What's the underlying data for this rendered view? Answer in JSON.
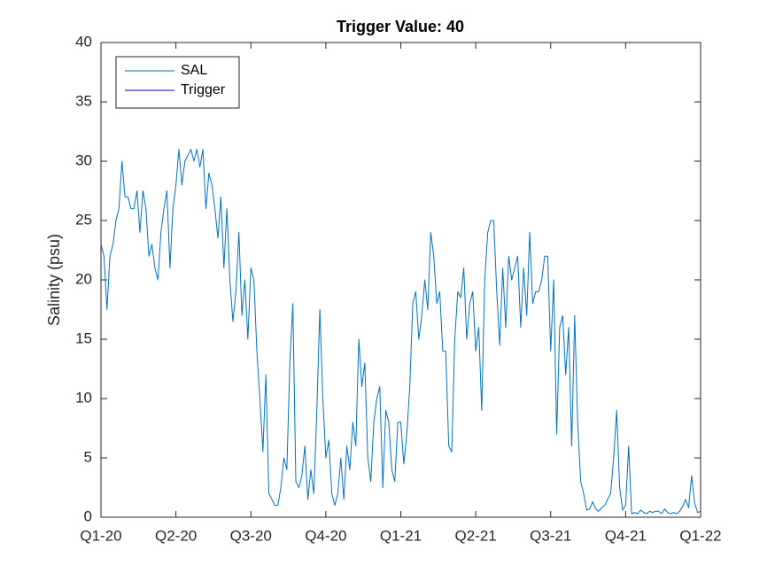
{
  "chart_data": {
    "type": "line",
    "title": "Trigger Value: 40",
    "y_label": "Salinity (psu)",
    "xlim": [
      0,
      8
    ],
    "xticks": [
      {
        "value": 0,
        "label": "Q1-20"
      },
      {
        "value": 1,
        "label": "Q2-20"
      },
      {
        "value": 2,
        "label": "Q3-20"
      },
      {
        "value": 3,
        "label": "Q4-20"
      },
      {
        "value": 4,
        "label": "Q1-21"
      },
      {
        "value": 5,
        "label": "Q2-21"
      },
      {
        "value": 6,
        "label": "Q3-21"
      },
      {
        "value": 7,
        "label": "Q4-21"
      },
      {
        "value": 8,
        "label": "Q1-22"
      }
    ],
    "ylim": [
      0,
      40
    ],
    "yticks": [
      0,
      5,
      10,
      15,
      20,
      25,
      30,
      35,
      40
    ],
    "grid": false,
    "legend": "upper left",
    "series": [
      {
        "name": "SAL",
        "color": "#0072bd",
        "x": [
          0,
          0.04,
          0.08,
          0.12,
          0.16,
          0.2,
          0.24,
          0.28,
          0.32,
          0.36,
          0.4,
          0.44,
          0.48,
          0.52,
          0.56,
          0.6,
          0.64,
          0.68,
          0.72,
          0.76,
          0.8,
          0.84,
          0.88,
          0.92,
          0.96,
          1,
          1.04,
          1.08,
          1.12,
          1.16,
          1.2,
          1.24,
          1.28,
          1.32,
          1.36,
          1.4,
          1.44,
          1.48,
          1.52,
          1.56,
          1.6,
          1.64,
          1.68,
          1.72,
          1.76,
          1.8,
          1.84,
          1.88,
          1.92,
          1.96,
          2,
          2.04,
          2.08,
          2.12,
          2.16,
          2.2,
          2.24,
          2.28,
          2.32,
          2.36,
          2.4,
          2.44,
          2.48,
          2.52,
          2.56,
          2.6,
          2.64,
          2.68,
          2.72,
          2.76,
          2.8,
          2.84,
          2.88,
          2.92,
          2.96,
          3,
          3.04,
          3.08,
          3.12,
          3.16,
          3.2,
          3.24,
          3.28,
          3.32,
          3.36,
          3.4,
          3.44,
          3.48,
          3.52,
          3.56,
          3.6,
          3.64,
          3.68,
          3.72,
          3.76,
          3.8,
          3.84,
          3.88,
          3.92,
          3.96,
          4,
          4.04,
          4.08,
          4.12,
          4.16,
          4.2,
          4.24,
          4.28,
          4.32,
          4.36,
          4.4,
          4.44,
          4.48,
          4.52,
          4.56,
          4.6,
          4.64,
          4.68,
          4.72,
          4.76,
          4.8,
          4.84,
          4.88,
          4.92,
          4.96,
          5,
          5.04,
          5.08,
          5.12,
          5.16,
          5.2,
          5.24,
          5.28,
          5.32,
          5.36,
          5.4,
          5.44,
          5.48,
          5.52,
          5.56,
          5.6,
          5.64,
          5.68,
          5.72,
          5.76,
          5.8,
          5.84,
          5.88,
          5.92,
          5.96,
          6,
          6.04,
          6.08,
          6.12,
          6.16,
          6.2,
          6.24,
          6.28,
          6.32,
          6.36,
          6.4,
          6.44,
          6.48,
          6.52,
          6.56,
          6.6,
          6.64,
          6.68,
          6.72,
          6.76,
          6.8,
          6.84,
          6.88,
          6.92,
          6.96,
          7,
          7.04,
          7.08,
          7.12,
          7.16,
          7.2,
          7.24,
          7.28,
          7.32,
          7.36,
          7.4,
          7.44,
          7.48,
          7.52,
          7.56,
          7.6,
          7.64,
          7.68,
          7.72,
          7.76,
          7.8,
          7.84,
          7.88,
          7.92,
          7.96,
          8
        ],
        "values": [
          23,
          22,
          17.5,
          22,
          23,
          25,
          26,
          30,
          27,
          27,
          26,
          26,
          27.5,
          24,
          27.5,
          26,
          22,
          23,
          21,
          20,
          24,
          26,
          27.5,
          21,
          26,
          28,
          31,
          28,
          30,
          30.5,
          31,
          30,
          31,
          29.5,
          31,
          26,
          29,
          28,
          26,
          23.5,
          27,
          21,
          26,
          20,
          16.5,
          19,
          24,
          17,
          20,
          15,
          21,
          20,
          14,
          10,
          5.5,
          12,
          2,
          1.5,
          1,
          1,
          2.5,
          5,
          4,
          13,
          18,
          3,
          2.5,
          3.5,
          6,
          1.5,
          4,
          2,
          9,
          17.5,
          10,
          5,
          6.5,
          2,
          1,
          2,
          5,
          1.5,
          6,
          4,
          8,
          6,
          15,
          11,
          13,
          5,
          3,
          8,
          10,
          11,
          2.5,
          9,
          8,
          4,
          3,
          8,
          8,
          4.5,
          7,
          11,
          18,
          19,
          15,
          17,
          20,
          17.5,
          24,
          22,
          18,
          19,
          14,
          14,
          6,
          5.5,
          15,
          19,
          18.5,
          21,
          15,
          18,
          19,
          14,
          16,
          9,
          20,
          24,
          25,
          25,
          19,
          14.5,
          21,
          16,
          22,
          20,
          21,
          22,
          16,
          21,
          17,
          24,
          18,
          19,
          19,
          20,
          22,
          22,
          14,
          20,
          7,
          16,
          17,
          12,
          16,
          6,
          17,
          8,
          3,
          2,
          0.6,
          0.7,
          1.3,
          0.7,
          0.5,
          0.8,
          1,
          1.5,
          2,
          5,
          9,
          2.5,
          0.6,
          1,
          6,
          0.3,
          0.4,
          0.3,
          0.6,
          0.4,
          0.3,
          0.5,
          0.4,
          0.5,
          0.5,
          0.3,
          0.7,
          0.4,
          0.3,
          0.4,
          0.3,
          0.5,
          0.9,
          1.5,
          0.8,
          3.5,
          1.2,
          0.4,
          0.5
        ]
      },
      {
        "name": "Trigger",
        "color": "#0000cc",
        "x": [
          0,
          8
        ],
        "values": [
          40,
          40
        ]
      }
    ]
  }
}
